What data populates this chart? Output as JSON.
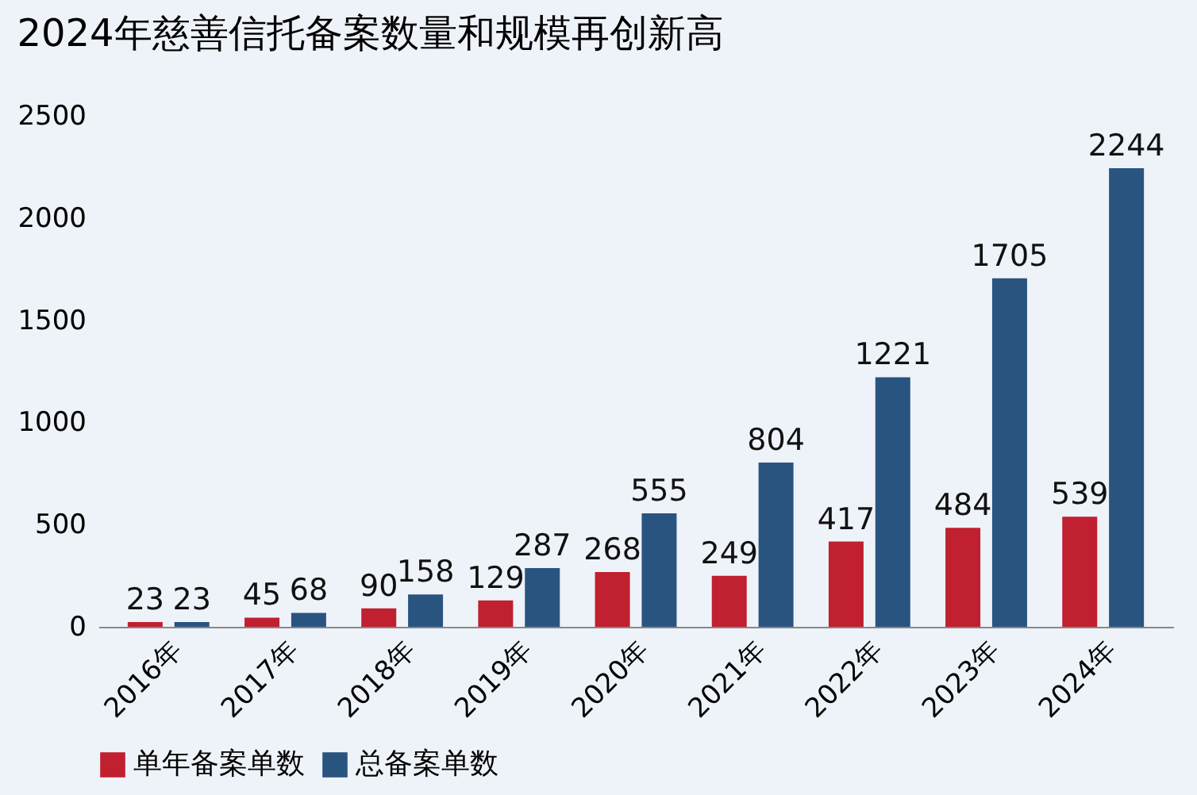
{
  "chart_data": {
    "type": "bar",
    "title": "2024年慈善信托备案数量和规模再创新高",
    "categories": [
      "2016年",
      "2017年",
      "2018年",
      "2019年",
      "2020年",
      "2021年",
      "2022年",
      "2023年",
      "2024年"
    ],
    "series": [
      {
        "name": "单年备案单数",
        "color": "#c0202f",
        "values": [
          23,
          45,
          90,
          129,
          268,
          249,
          417,
          484,
          539
        ]
      },
      {
        "name": "总备案单数",
        "color": "#2a5480",
        "values": [
          23,
          68,
          158,
          287,
          555,
          804,
          1221,
          1705,
          2244
        ]
      }
    ],
    "ylim": [
      0,
      2500
    ],
    "yticks": [
      0,
      500,
      1000,
      1500,
      2000,
      2500
    ],
    "grid": false,
    "legend": "bottom",
    "data_labels": true
  }
}
